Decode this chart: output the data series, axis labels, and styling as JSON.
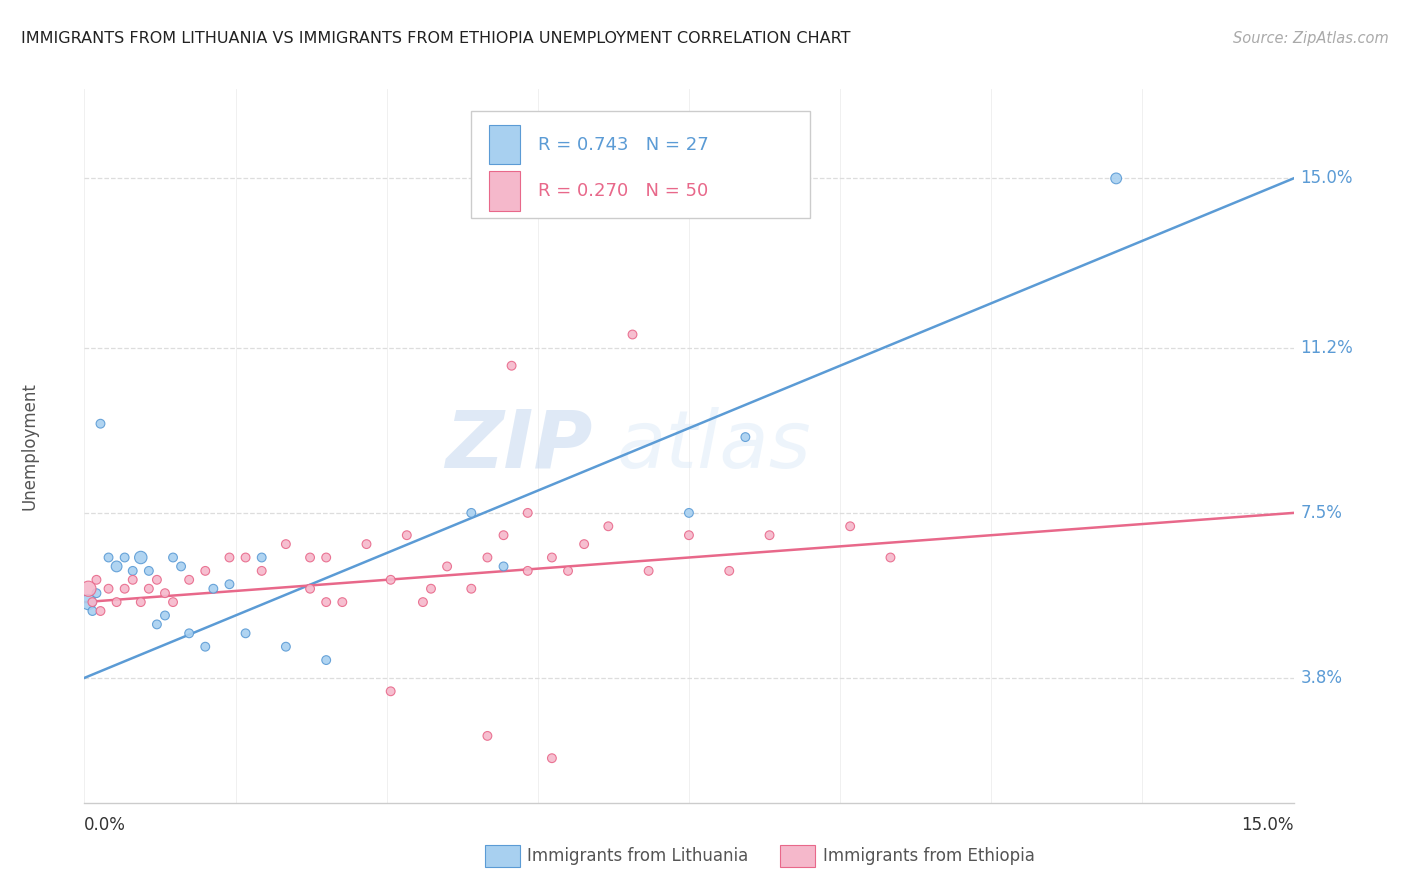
{
  "title": "IMMIGRANTS FROM LITHUANIA VS IMMIGRANTS FROM ETHIOPIA UNEMPLOYMENT CORRELATION CHART",
  "source": "Source: ZipAtlas.com",
  "ylabel": "Unemployment",
  "yticks": [
    3.8,
    7.5,
    11.2,
    15.0
  ],
  "ytick_labels": [
    "3.8%",
    "7.5%",
    "11.2%",
    "15.0%"
  ],
  "xmin": 0.0,
  "xmax": 15.0,
  "ymin": 1.0,
  "ymax": 17.0,
  "legend_blue_r": "R = 0.743",
  "legend_blue_n": "N = 27",
  "legend_pink_r": "R = 0.270",
  "legend_pink_n": "N = 50",
  "legend_label_blue": "Immigrants from Lithuania",
  "legend_label_pink": "Immigrants from Ethiopia",
  "blue_color": "#a8d0f0",
  "pink_color": "#f5b8cb",
  "blue_edge_color": "#5b9bd5",
  "pink_edge_color": "#e8688a",
  "blue_line_color": "#5b9bd5",
  "pink_line_color": "#e8688a",
  "watermark_zip": "ZIP",
  "watermark_atlas": "atlas",
  "lit_x": [
    0.05,
    0.1,
    0.15,
    0.2,
    0.3,
    0.4,
    0.5,
    0.6,
    0.7,
    0.8,
    0.9,
    1.0,
    1.1,
    1.2,
    1.3,
    1.5,
    1.6,
    1.8,
    2.0,
    2.2,
    2.5,
    3.0,
    4.8,
    5.2,
    7.5,
    8.2,
    12.8
  ],
  "lit_y": [
    5.5,
    5.3,
    5.7,
    9.5,
    6.5,
    6.3,
    6.5,
    6.2,
    6.5,
    6.2,
    5.0,
    5.2,
    6.5,
    6.3,
    4.8,
    4.5,
    5.8,
    5.9,
    4.8,
    6.5,
    4.5,
    4.2,
    7.5,
    6.3,
    7.5,
    9.2,
    15.0
  ],
  "lit_sizes": [
    120,
    40,
    40,
    40,
    40,
    60,
    40,
    40,
    80,
    40,
    40,
    40,
    40,
    40,
    40,
    40,
    40,
    40,
    40,
    40,
    40,
    40,
    40,
    40,
    40,
    40,
    60
  ],
  "eth_x": [
    0.05,
    0.1,
    0.15,
    0.2,
    0.3,
    0.4,
    0.5,
    0.6,
    0.7,
    0.8,
    0.9,
    1.0,
    1.1,
    1.3,
    1.5,
    1.8,
    2.0,
    2.2,
    2.5,
    2.8,
    3.0,
    3.2,
    3.5,
    3.8,
    4.0,
    4.3,
    4.5,
    4.8,
    5.0,
    5.2,
    5.3,
    5.5,
    5.8,
    6.0,
    6.5,
    6.8,
    7.0,
    7.5,
    8.0,
    8.5,
    9.5,
    10.0,
    5.0,
    5.8,
    3.8,
    6.2,
    4.2,
    2.8,
    3.0,
    5.5
  ],
  "eth_y": [
    5.8,
    5.5,
    6.0,
    5.3,
    5.8,
    5.5,
    5.8,
    6.0,
    5.5,
    5.8,
    6.0,
    5.7,
    5.5,
    6.0,
    6.2,
    6.5,
    6.5,
    6.2,
    6.8,
    5.8,
    6.5,
    5.5,
    6.8,
    6.0,
    7.0,
    5.8,
    6.3,
    5.8,
    6.5,
    7.0,
    10.8,
    6.2,
    6.5,
    6.2,
    7.2,
    11.5,
    6.2,
    7.0,
    6.2,
    7.0,
    7.2,
    6.5,
    2.5,
    2.0,
    3.5,
    6.8,
    5.5,
    6.5,
    5.5,
    7.5
  ],
  "eth_sizes": [
    120,
    40,
    40,
    40,
    40,
    40,
    40,
    40,
    40,
    40,
    40,
    40,
    40,
    40,
    40,
    40,
    40,
    40,
    40,
    40,
    40,
    40,
    40,
    40,
    40,
    40,
    40,
    40,
    40,
    40,
    40,
    40,
    40,
    40,
    40,
    40,
    40,
    40,
    40,
    40,
    40,
    40,
    40,
    40,
    40,
    40,
    40,
    40,
    40,
    40
  ],
  "lit_regr_x0": 0.0,
  "lit_regr_x1": 15.0,
  "lit_regr_y0": 3.8,
  "lit_regr_y1": 15.0,
  "eth_regr_x0": 0.0,
  "eth_regr_x1": 15.0,
  "eth_regr_y0": 5.5,
  "eth_regr_y1": 7.5
}
